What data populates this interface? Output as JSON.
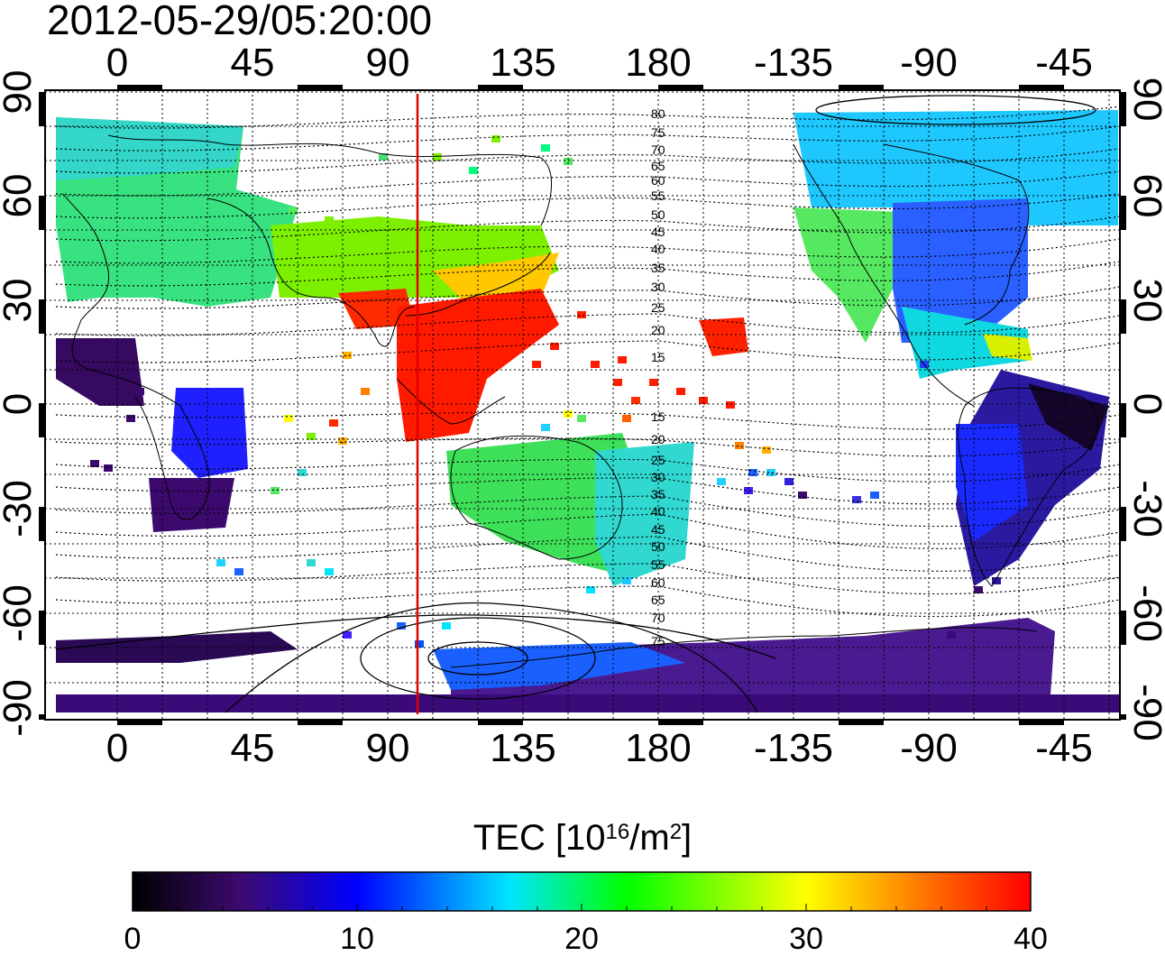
{
  "title": "2012-05-29/05:20:00",
  "map": {
    "top_lon_labels": [
      "0",
      "45",
      "90",
      "135",
      "180",
      "-135",
      "-90",
      "-45"
    ],
    "bottom_lon_labels": [
      "0",
      "45",
      "90",
      "135",
      "180",
      "-135",
      "-90",
      "-45"
    ],
    "left_lat_labels": [
      "90",
      "60",
      "30",
      "0",
      "-30",
      "-60",
      "-90"
    ],
    "right_lat_labels": [
      "90",
      "60",
      "30",
      "0",
      "-30",
      "-60",
      "-90"
    ],
    "meridian_marker_lon": 100,
    "marker_color": "#e00000",
    "mag_lat_labels_north": [
      "80",
      "75",
      "70",
      "65",
      "60",
      "55",
      "50",
      "45",
      "40",
      "35",
      "30",
      "25",
      "20",
      "15"
    ],
    "mag_lat_labels_south": [
      "15",
      "20",
      "25",
      "30",
      "35",
      "40",
      "45",
      "50",
      "55",
      "60",
      "65",
      "70",
      "75"
    ]
  },
  "colorbar": {
    "label_main": "TEC  [10",
    "label_exp1": "16",
    "label_mid": "/m",
    "label_exp2": "2",
    "label_end": "]",
    "tick_labels": [
      "0",
      "10",
      "20",
      "30",
      "40"
    ],
    "range": [
      0,
      40
    ],
    "colors": [
      "#000000",
      "#3c0a6e",
      "#0000ff",
      "#00e5ff",
      "#00ff00",
      "#ffff00",
      "#ff8000",
      "#ff0000"
    ]
  }
}
